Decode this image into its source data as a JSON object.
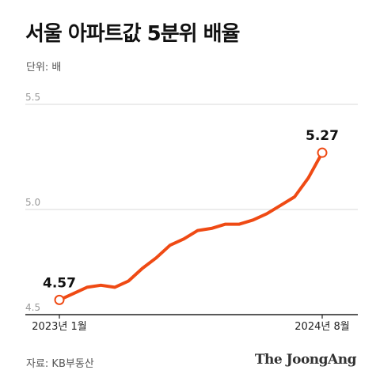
{
  "title": "서울 아파트값 5분위 배율",
  "unit_label": "단위: 배",
  "source": "자료: KB부동산",
  "logo": "The JoongAng",
  "colors": {
    "line": "#ef4a14",
    "grid": "#d9d9d9",
    "axis": "#222222",
    "tick_text": "#999999"
  },
  "chart_data": {
    "type": "line",
    "title": "서울 아파트값 5분위 배율",
    "ylabel": "단위: 배",
    "ylim": [
      4.5,
      5.5
    ],
    "yticks": [
      "4.5",
      "5.0",
      "5.5"
    ],
    "x_labels": {
      "first": "2023년 1월",
      "last": "2024년 8월"
    },
    "x": [
      "2023-01",
      "2023-02",
      "2023-03",
      "2023-04",
      "2023-05",
      "2023-06",
      "2023-07",
      "2023-08",
      "2023-09",
      "2023-10",
      "2023-11",
      "2023-12",
      "2024-01",
      "2024-02",
      "2024-03",
      "2024-04",
      "2024-05",
      "2024-06",
      "2024-07",
      "2024-08"
    ],
    "series": [
      {
        "values": [
          4.57,
          4.6,
          4.63,
          4.64,
          4.63,
          4.66,
          4.72,
          4.77,
          4.83,
          4.86,
          4.9,
          4.91,
          4.93,
          4.93,
          4.95,
          4.98,
          5.02,
          5.06,
          5.15,
          5.27
        ]
      }
    ],
    "annotations": [
      {
        "index": 0,
        "label": "4.57"
      },
      {
        "index": 19,
        "label": "5.27"
      }
    ]
  }
}
